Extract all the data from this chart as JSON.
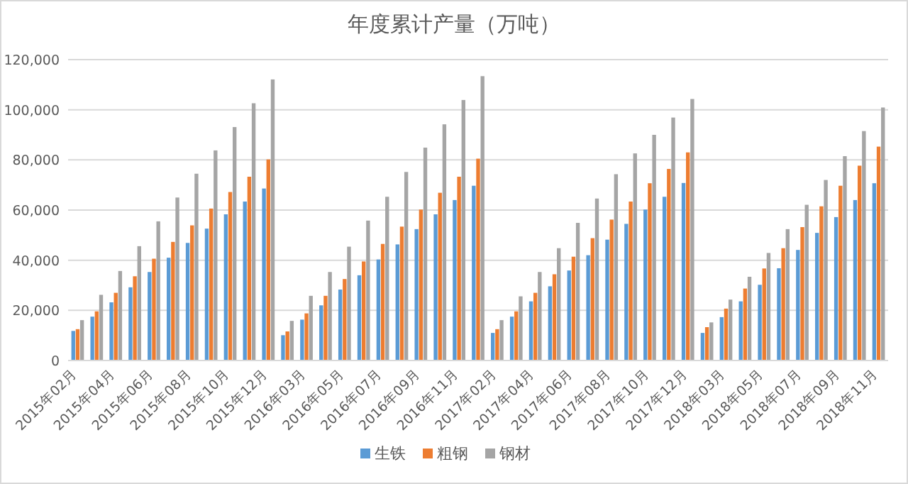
{
  "chart_data": {
    "type": "bar",
    "title": "年度累计产量（万吨）",
    "categories": [
      "2015年02月",
      null,
      "2015年04月",
      null,
      "2015年06月",
      null,
      "2015年08月",
      null,
      "2015年10月",
      null,
      "2015年12月",
      null,
      "2016年03月",
      null,
      "2016年05月",
      null,
      "2016年07月",
      null,
      "2016年09月",
      null,
      "2016年11月",
      null,
      "2017年02月",
      null,
      "2017年04月",
      null,
      "2017年06月",
      null,
      "2017年08月",
      null,
      "2017年10月",
      null,
      "2017年12月",
      null,
      "2018年03月",
      null,
      "2018年05月",
      null,
      "2018年07月",
      null,
      "2018年09月",
      null,
      "2018年11月"
    ],
    "series": [
      {
        "name": "生铁",
        "color": "#5b9bd5",
        "values": [
          11800,
          17500,
          23200,
          29200,
          35300,
          41000,
          46900,
          52600,
          58300,
          63400,
          68600,
          10100,
          16300,
          22000,
          28300,
          34000,
          40300,
          46300,
          52400,
          58300,
          64000,
          69700,
          11000,
          17500,
          23600,
          29600,
          35900,
          42000,
          48200,
          54500,
          60200,
          65300,
          70800,
          11000,
          17300,
          23600,
          30200,
          36800,
          44100,
          50900,
          57200,
          64000,
          70700
        ]
      },
      {
        "name": "粗钢",
        "color": "#ed7d31",
        "values": [
          12500,
          19600,
          27000,
          33600,
          40600,
          47300,
          53900,
          60600,
          67200,
          73300,
          80200,
          11600,
          18800,
          25800,
          32500,
          39500,
          46500,
          53400,
          60200,
          66900,
          73300,
          80500,
          12500,
          19600,
          27000,
          34400,
          41400,
          48800,
          56200,
          63400,
          70700,
          76400,
          83000,
          13300,
          20700,
          28700,
          36700,
          44800,
          53200,
          61500,
          69700,
          77700,
          85300
        ]
      },
      {
        "name": "钢材",
        "color": "#a5a5a5",
        "values": [
          16100,
          26200,
          35700,
          45600,
          55500,
          65000,
          74500,
          83800,
          93100,
          102600,
          112100,
          15800,
          25800,
          35300,
          45400,
          55800,
          65300,
          75200,
          84900,
          94200,
          103900,
          113400,
          16100,
          25600,
          35300,
          44800,
          54900,
          64600,
          74300,
          82600,
          90000,
          96900,
          104300,
          15200,
          24300,
          33400,
          42900,
          52400,
          62100,
          72000,
          81500,
          91500,
          100900
        ]
      }
    ],
    "ylim": [
      0,
      120000
    ],
    "yticks": [
      {
        "value": 0,
        "label": "0"
      },
      {
        "value": 20000,
        "label": "20,000"
      },
      {
        "value": 40000,
        "label": "40,000"
      },
      {
        "value": 60000,
        "label": "60,000"
      },
      {
        "value": 80000,
        "label": "80,000"
      },
      {
        "value": 100000,
        "label": "100,000"
      },
      {
        "value": 120000,
        "label": "120,000"
      }
    ],
    "grid": "y",
    "legend": "bottom"
  }
}
